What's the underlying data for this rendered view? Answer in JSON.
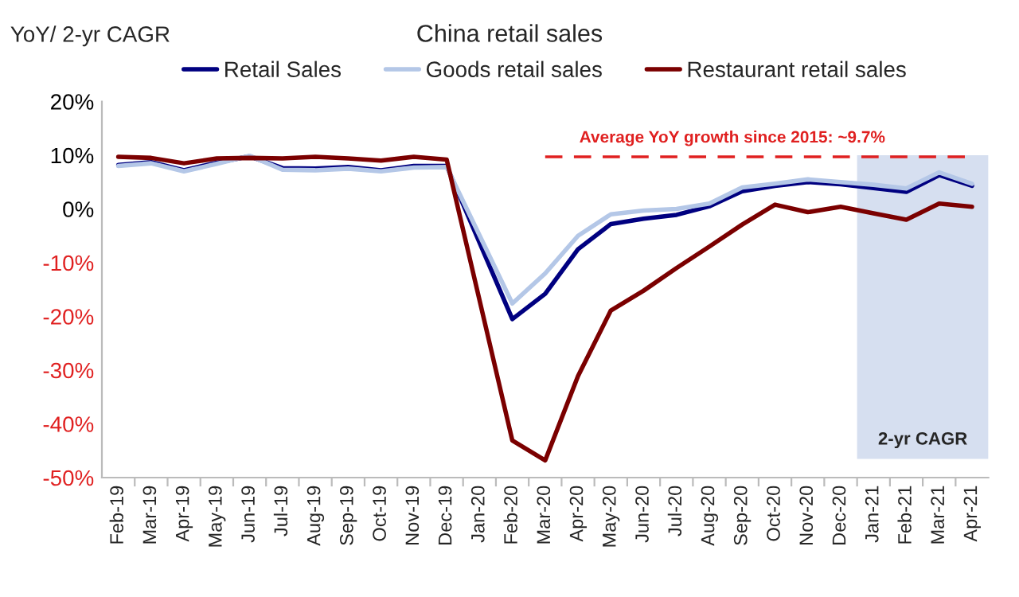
{
  "chart_data": {
    "type": "line",
    "title": "China retail sales",
    "ylabel": "YoY/ 2-yr CAGR",
    "categories": [
      "Feb-19",
      "Mar-19",
      "Apr-19",
      "May-19",
      "Jun-19",
      "Jul-19",
      "Aug-19",
      "Sep-19",
      "Oct-19",
      "Nov-19",
      "Dec-19",
      "Jan-20",
      "Feb-20",
      "Mar-20",
      "Apr-20",
      "May-20",
      "Jun-20",
      "Jul-20",
      "Aug-20",
      "Sep-20",
      "Oct-20",
      "Nov-20",
      "Dec-20",
      "Jan-21",
      "Feb-21",
      "Mar-21",
      "Apr-21"
    ],
    "series": [
      {
        "name": "Retail Sales",
        "color": "#000080",
        "values": [
          8.2,
          8.7,
          7.2,
          8.6,
          9.8,
          7.6,
          7.5,
          7.8,
          7.2,
          8.0,
          8.0,
          null,
          -20.5,
          -15.8,
          -7.5,
          -2.8,
          -1.8,
          -1.1,
          0.5,
          3.3,
          4.3,
          5.0,
          4.6,
          3.9,
          3.2,
          6.3,
          4.3
        ]
      },
      {
        "name": "Goods retail sales",
        "color": "#b4c7e7",
        "values": [
          8.0,
          8.5,
          7.0,
          8.4,
          9.9,
          7.3,
          7.2,
          7.5,
          7.0,
          7.7,
          7.8,
          null,
          -17.6,
          -12.0,
          -5.0,
          -1.0,
          -0.3,
          0.0,
          1.0,
          4.0,
          4.7,
          5.5,
          5.0,
          4.5,
          3.8,
          6.8,
          4.7
        ]
      },
      {
        "name": "Restaurant retail sales",
        "color": "#7b0000",
        "values": [
          9.7,
          9.5,
          8.5,
          9.4,
          9.5,
          9.4,
          9.7,
          9.4,
          9.0,
          9.7,
          9.2,
          null,
          -43.1,
          -46.8,
          -31.1,
          -18.9,
          -15.2,
          -11.0,
          -7.0,
          -2.9,
          0.8,
          -0.6,
          0.4,
          -0.8,
          -2.0,
          1.0,
          0.4
        ]
      }
    ],
    "ylim": [
      -50,
      20
    ],
    "yticks": [
      {
        "value": -50,
        "label": "-50%"
      },
      {
        "value": -40,
        "label": "-40%"
      },
      {
        "value": -30,
        "label": "-30%"
      },
      {
        "value": -20,
        "label": "-20%"
      },
      {
        "value": -10,
        "label": "-10%"
      },
      {
        "value": 0,
        "label": "0%"
      },
      {
        "value": 10,
        "label": "10%"
      },
      {
        "value": 20,
        "label": "20%"
      }
    ],
    "ref_lines": [
      {
        "axis": "y",
        "value": 9.7,
        "label": "Average YoY growth since 2015: ~9.7%",
        "color": "#e02020",
        "line_style": "dashed"
      }
    ],
    "bands": [
      {
        "axis": "x",
        "from": "Jan-21",
        "to": "Apr-21",
        "label": "2-yr CAGR",
        "color": "#d6dff0"
      }
    ],
    "legend": "top",
    "grid": false,
    "marker": "none",
    "line_style": "solid"
  }
}
